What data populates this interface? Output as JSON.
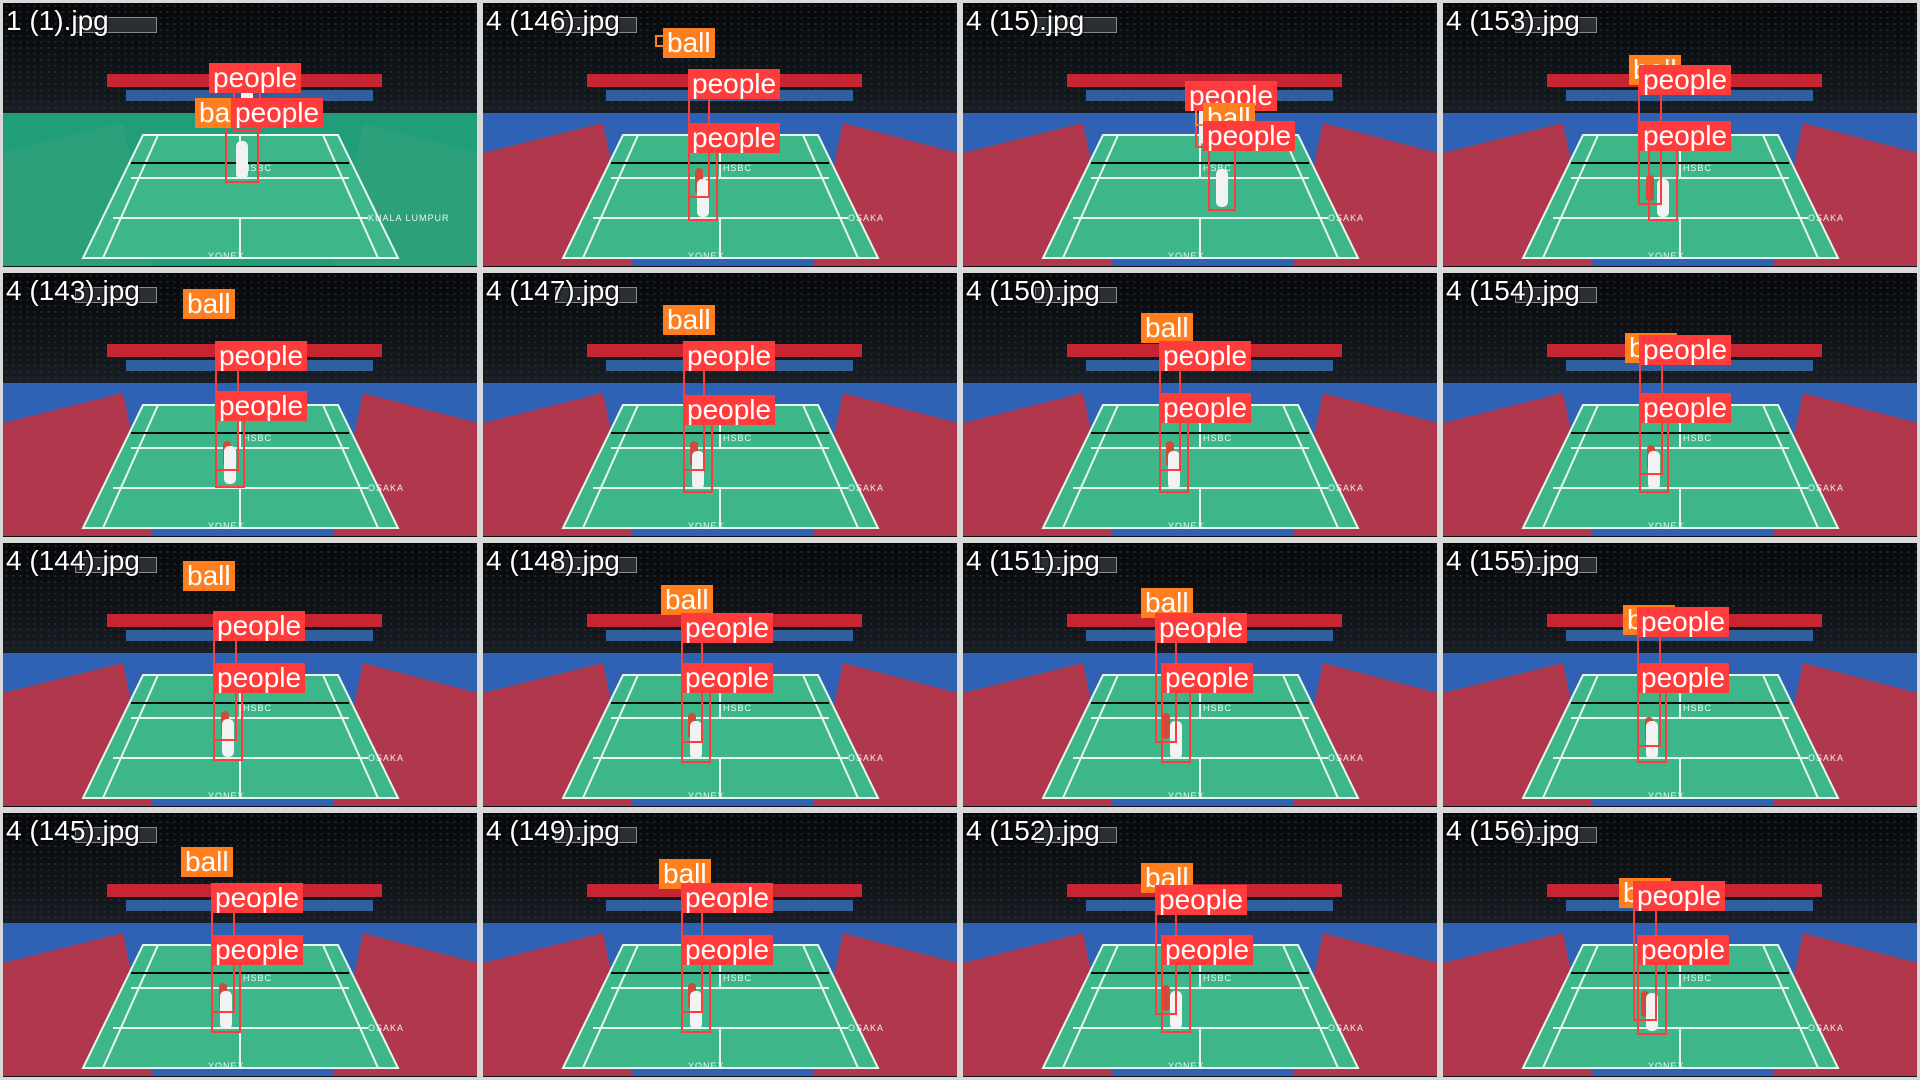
{
  "tiles": [
    {
      "label": "1 (1).jpg",
      "variant": "green",
      "detections": [
        {
          "cls": "people",
          "text": "people"
        },
        {
          "cls": "ball",
          "text": "ball"
        },
        {
          "cls": "people",
          "text": "people"
        }
      ]
    },
    {
      "label": "4 (146).jpg",
      "variant": "blue",
      "detections": [
        {
          "cls": "ball",
          "text": "ball"
        },
        {
          "cls": "people",
          "text": "people"
        },
        {
          "cls": "people",
          "text": "people"
        }
      ]
    },
    {
      "label": "4 (15).jpg",
      "variant": "blue",
      "detections": [
        {
          "cls": "people",
          "text": "people"
        },
        {
          "cls": "ball",
          "text": "ball"
        },
        {
          "cls": "people",
          "text": "people"
        }
      ]
    },
    {
      "label": "4 (153).jpg",
      "variant": "blue",
      "detections": [
        {
          "cls": "ball",
          "text": "ball"
        },
        {
          "cls": "people",
          "text": "people"
        },
        {
          "cls": "people",
          "text": "people"
        }
      ]
    },
    {
      "label": "4 (143).jpg",
      "variant": "blue",
      "detections": [
        {
          "cls": "ball",
          "text": "ball"
        },
        {
          "cls": "people",
          "text": "people"
        },
        {
          "cls": "people",
          "text": "people"
        }
      ]
    },
    {
      "label": "4 (147).jpg",
      "variant": "blue",
      "detections": [
        {
          "cls": "ball",
          "text": "ball"
        },
        {
          "cls": "people",
          "text": "people"
        },
        {
          "cls": "people",
          "text": "people"
        }
      ]
    },
    {
      "label": "4 (150).jpg",
      "variant": "blue",
      "detections": [
        {
          "cls": "ball",
          "text": "ball"
        },
        {
          "cls": "people",
          "text": "people"
        },
        {
          "cls": "people",
          "text": "people"
        }
      ]
    },
    {
      "label": "4 (154).jpg",
      "variant": "blue",
      "detections": [
        {
          "cls": "ball",
          "text": "ball"
        },
        {
          "cls": "people",
          "text": "people"
        },
        {
          "cls": "people",
          "text": "people"
        }
      ]
    },
    {
      "label": "4 (144).jpg",
      "variant": "blue",
      "detections": [
        {
          "cls": "ball",
          "text": "ball"
        },
        {
          "cls": "people",
          "text": "people"
        },
        {
          "cls": "people",
          "text": "people"
        }
      ]
    },
    {
      "label": "4 (148).jpg",
      "variant": "blue",
      "detections": [
        {
          "cls": "ball",
          "text": "ball"
        },
        {
          "cls": "people",
          "text": "people"
        },
        {
          "cls": "people",
          "text": "people"
        }
      ]
    },
    {
      "label": "4 (151).jpg",
      "variant": "blue",
      "detections": [
        {
          "cls": "ball",
          "text": "ball"
        },
        {
          "cls": "people",
          "text": "people"
        },
        {
          "cls": "people",
          "text": "people"
        }
      ]
    },
    {
      "label": "4 (155).jpg",
      "variant": "blue",
      "detections": [
        {
          "cls": "ball",
          "text": "ball"
        },
        {
          "cls": "people",
          "text": "people"
        },
        {
          "cls": "people",
          "text": "people"
        }
      ]
    },
    {
      "label": "4 (145).jpg",
      "variant": "blue",
      "detections": [
        {
          "cls": "ball",
          "text": "ball"
        },
        {
          "cls": "people",
          "text": "people"
        },
        {
          "cls": "people",
          "text": "people"
        }
      ]
    },
    {
      "label": "4 (149).jpg",
      "variant": "blue",
      "detections": [
        {
          "cls": "ball",
          "text": "ball"
        },
        {
          "cls": "people",
          "text": "people"
        },
        {
          "cls": "people",
          "text": "people"
        }
      ]
    },
    {
      "label": "4 (152).jpg",
      "variant": "blue",
      "detections": [
        {
          "cls": "ball",
          "text": "ball"
        },
        {
          "cls": "people",
          "text": "people"
        },
        {
          "cls": "people",
          "text": "people"
        }
      ]
    },
    {
      "label": "4 (156).jpg",
      "variant": "blue",
      "detections": [
        {
          "cls": "ball",
          "text": "ball"
        },
        {
          "cls": "people",
          "text": "people"
        },
        {
          "cls": "people",
          "text": "people"
        }
      ]
    }
  ],
  "colors": {
    "people_box": "#ff3b3b",
    "ball_box": "#ff7f1e",
    "court_green": "#3db68a",
    "floor_blue": "#2f62b5",
    "floor_green_venue": "#1f9e79"
  },
  "brand_text": {
    "yonex": "YONEX",
    "hsbc": "HSBC",
    "osaka": "OSAKA",
    "kuala_lumpur": "KUALA LUMPUR"
  }
}
